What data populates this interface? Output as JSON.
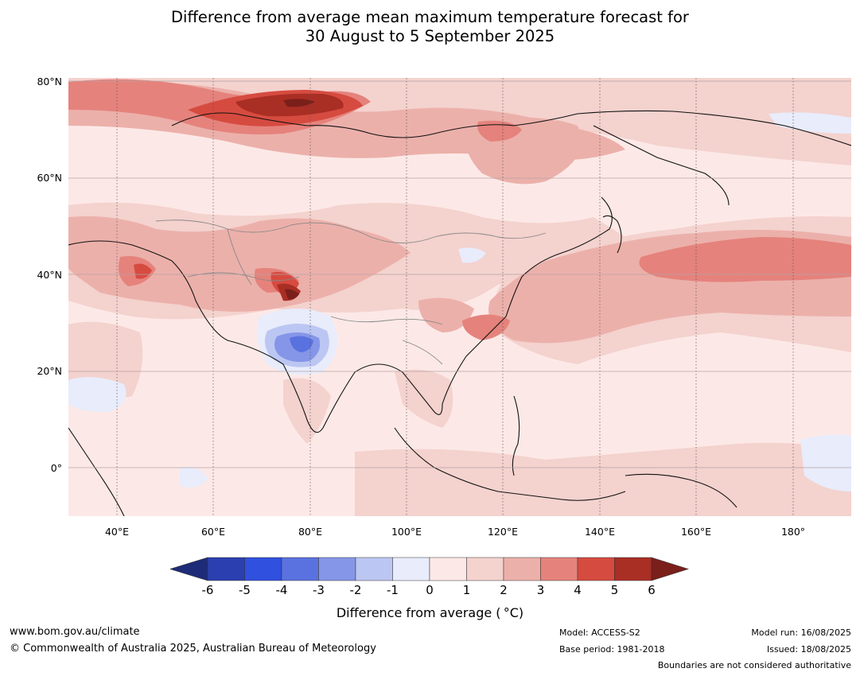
{
  "title": {
    "line1": "Difference from average mean maximum temperature forecast for",
    "line2": "30 August to 5 September 2025"
  },
  "map": {
    "lat_labels": [
      "80°N",
      "60°N",
      "40°N",
      "20°N",
      "0°"
    ],
    "lon_labels": [
      "40°E",
      "60°E",
      "80°E",
      "100°E",
      "120°E",
      "140°E",
      "160°E",
      "180°"
    ],
    "extent": {
      "lon": [
        30,
        192
      ],
      "lat": [
        -10,
        80
      ]
    },
    "colors": {
      "c_m6": "#1d2b78",
      "c_m5": "#2b3fb0",
      "c_m4": "#3050e0",
      "c_m3": "#5a72e0",
      "c_m2": "#8596e8",
      "c_m1": "#bcc6f2",
      "c_0n": "#e8ecfb",
      "c_0p": "#fce9e7",
      "c_1": "#f4d2ce",
      "c_2": "#ecb0aa",
      "c_3": "#e5827c",
      "c_4": "#d64b40",
      "c_5": "#a92e24",
      "c_6": "#7a1f1a"
    }
  },
  "colorbar": {
    "labels": [
      "-6",
      "-5",
      "-4",
      "-3",
      "-2",
      "-1",
      "0",
      "1",
      "2",
      "3",
      "4",
      "5",
      "6"
    ],
    "title": "Difference from average ( °C)"
  },
  "footer": {
    "website": "www.bom.gov.au/climate",
    "copyright": "© Commonwealth of Australia 2025, Australian Bureau of Meteorology",
    "model": "Model: ACCESS-S2",
    "base_period": "Base period: 1981-2018",
    "model_run": "Model run: 16/08/2025",
    "issued": "Issued: 18/08/2025",
    "disclaimer": "Boundaries are not considered authoritative"
  }
}
